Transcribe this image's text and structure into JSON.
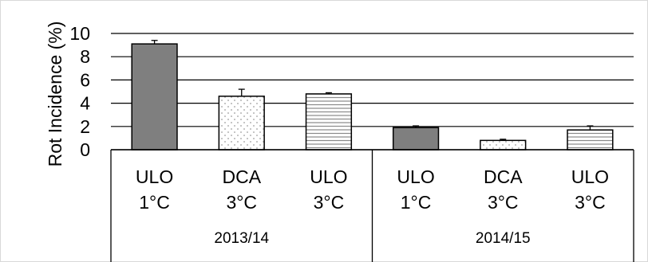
{
  "chart_data": {
    "type": "bar",
    "title": "",
    "ylabel": "Rot Incidence (%)",
    "xlabel": "",
    "ylim": [
      0,
      10
    ],
    "yticks": [
      0,
      2,
      4,
      6,
      8,
      10
    ],
    "grid": true,
    "categories": [
      {
        "line1": "ULO",
        "line2": "1°C",
        "group": "2013/14"
      },
      {
        "line1": "DCA",
        "line2": "3°C",
        "group": "2013/14"
      },
      {
        "line1": "ULO",
        "line2": "3°C",
        "group": "2013/14"
      },
      {
        "line1": "ULO",
        "line2": "1°C",
        "group": "2014/15"
      },
      {
        "line1": "DCA",
        "line2": "3°C",
        "group": "2014/15"
      },
      {
        "line1": "ULO",
        "line2": "3°C",
        "group": "2014/15"
      }
    ],
    "groups": [
      "2013/14",
      "2014/15"
    ],
    "values": [
      9.1,
      4.6,
      4.8,
      1.9,
      0.8,
      1.7
    ],
    "errors": [
      0.3,
      0.6,
      0.1,
      0.15,
      0.1,
      0.35
    ],
    "patterns": [
      "solid-gray",
      "dotted",
      "horizontal-lines",
      "solid-gray",
      "dotted",
      "horizontal-lines"
    ],
    "colors": {
      "bar_fill": "#7f7f7f",
      "outline": "#000000",
      "pattern": "#9e9e9e",
      "grid": "#000000"
    }
  }
}
